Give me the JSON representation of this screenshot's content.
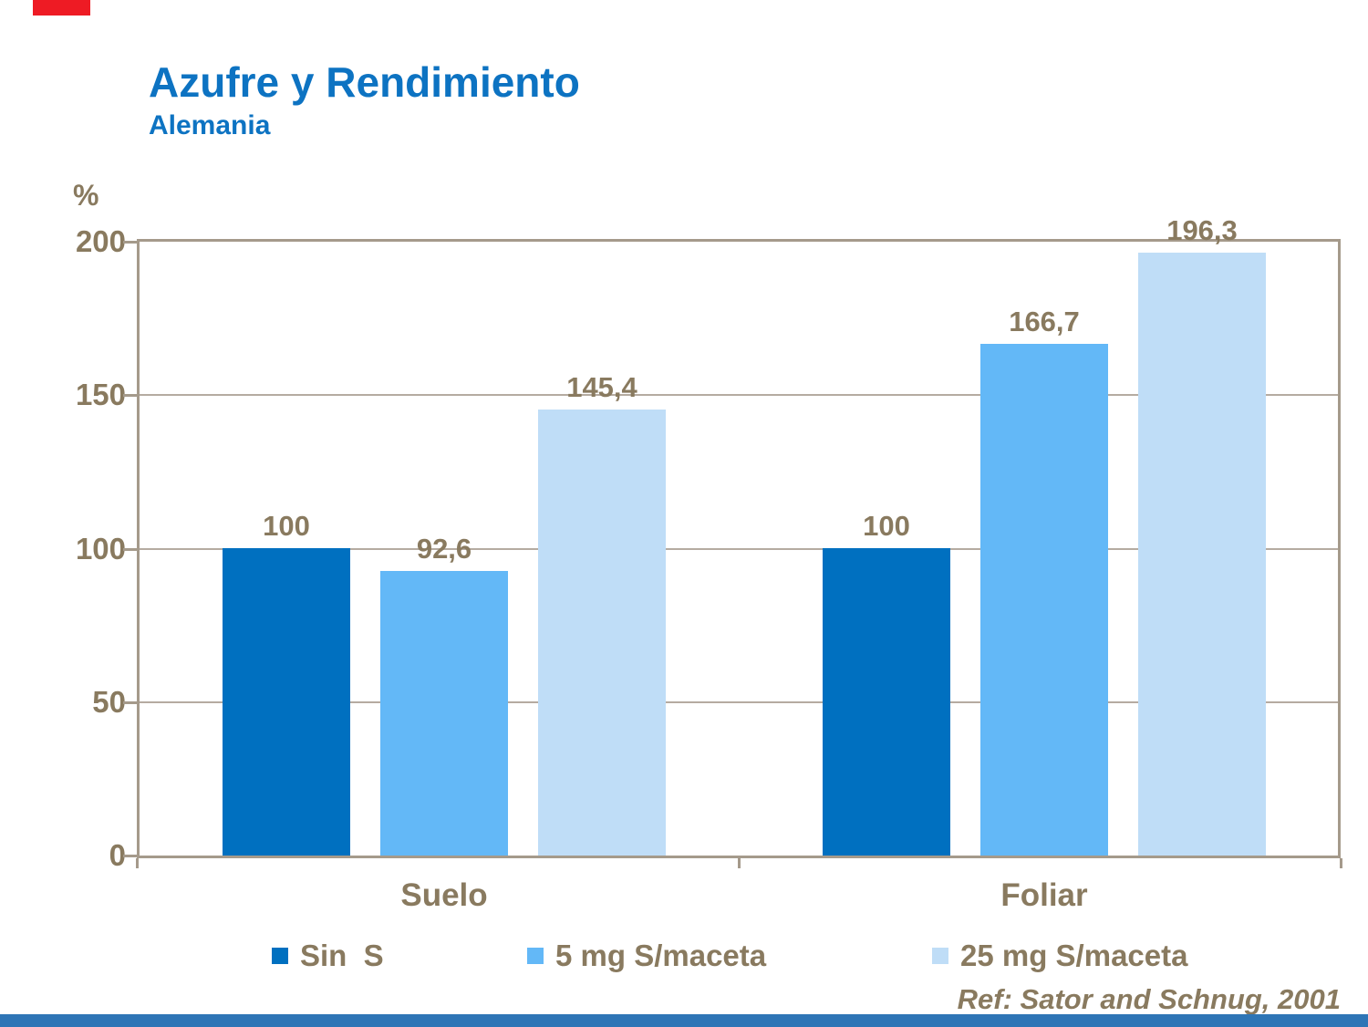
{
  "slide": {
    "title": "Azufre y Rendimiento",
    "subtitle": "Alemania",
    "reference": "Ref: Sator and Schnug, 2001"
  },
  "colors": {
    "title_blue": "#0D73C2",
    "text_brown": "#897A5F",
    "axis_taupe": "#A59A8B",
    "gridline_gray": "#B5ABA1",
    "accent_red": "#EE1B24",
    "footer_blue": "#2E75B6",
    "bar_dark_blue": "#0070C0",
    "bar_medium_blue": "#63B8F7",
    "bar_light_blue": "#BFDDF7"
  },
  "chart_data": {
    "type": "bar",
    "title": "Azufre y Rendimiento",
    "subtitle": "Alemania",
    "xlabel": "",
    "ylabel": "%",
    "ylim": [
      0,
      200
    ],
    "yticks": [
      200,
      150,
      100,
      50,
      0
    ],
    "ytick_labels": [
      "200",
      "150",
      "100",
      "50",
      "0"
    ],
    "grid": true,
    "legend_position": "bottom",
    "categories": [
      "Suelo",
      "Foliar"
    ],
    "series": [
      {
        "name": "Sin  S",
        "color": "#0070C0",
        "values": [
          100,
          100
        ],
        "value_labels": [
          "100",
          "100"
        ]
      },
      {
        "name": "5 mg S/maceta",
        "color": "#63B8F7",
        "values": [
          92.6,
          166.7
        ],
        "value_labels": [
          "92,6",
          "166,7"
        ]
      },
      {
        "name": "25 mg S/maceta",
        "color": "#BFDDF7",
        "values": [
          145.4,
          196.3
        ],
        "value_labels": [
          "145,4",
          "196,3"
        ]
      }
    ],
    "reference": "Ref: Sator and Schnug, 2001"
  }
}
